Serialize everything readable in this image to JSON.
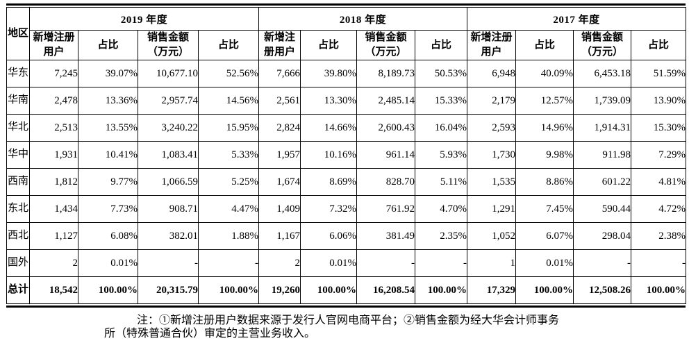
{
  "table": {
    "corner_header": "地区",
    "year_groups": [
      {
        "label": "2019 年度"
      },
      {
        "label": "2018 年度"
      },
      {
        "label": "2017 年度"
      }
    ],
    "sub_headers": [
      "新增注册用户",
      "占比",
      "销售金额（万元）",
      "占比"
    ],
    "rows": [
      {
        "region": "华东",
        "bold": false,
        "cells": [
          "7,245",
          "39.07%",
          "10,677.10",
          "52.56%",
          "7,666",
          "39.80%",
          "8,189.73",
          "50.53%",
          "6,948",
          "40.09%",
          "6,453.18",
          "51.59%"
        ]
      },
      {
        "region": "华南",
        "bold": false,
        "cells": [
          "2,478",
          "13.36%",
          "2,957.74",
          "14.56%",
          "2,561",
          "13.30%",
          "2,485.14",
          "15.33%",
          "2,179",
          "12.57%",
          "1,739.09",
          "13.90%"
        ]
      },
      {
        "region": "华北",
        "bold": false,
        "cells": [
          "2,513",
          "13.55%",
          "3,240.22",
          "15.95%",
          "2,824",
          "14.66%",
          "2,600.43",
          "16.04%",
          "2,593",
          "14.96%",
          "1,914.31",
          "15.30%"
        ]
      },
      {
        "region": "华中",
        "bold": false,
        "cells": [
          "1,931",
          "10.41%",
          "1,083.41",
          "5.33%",
          "1,957",
          "10.16%",
          "961.14",
          "5.93%",
          "1,730",
          "9.98%",
          "911.98",
          "7.29%"
        ]
      },
      {
        "region": "西南",
        "bold": false,
        "cells": [
          "1,812",
          "9.77%",
          "1,066.59",
          "5.25%",
          "1,674",
          "8.69%",
          "828.70",
          "5.11%",
          "1,535",
          "8.86%",
          "601.22",
          "4.81%"
        ]
      },
      {
        "region": "东北",
        "bold": false,
        "cells": [
          "1,434",
          "7.73%",
          "908.71",
          "4.47%",
          "1,409",
          "7.32%",
          "761.92",
          "4.70%",
          "1,291",
          "7.45%",
          "590.44",
          "4.72%"
        ]
      },
      {
        "region": "西北",
        "bold": false,
        "cells": [
          "1,127",
          "6.08%",
          "382.01",
          "1.88%",
          "1,167",
          "6.06%",
          "381.49",
          "2.35%",
          "1,052",
          "6.07%",
          "298.04",
          "2.38%"
        ]
      },
      {
        "region": "国外",
        "bold": false,
        "cells": [
          "2",
          "0.01%",
          "-",
          "-",
          "2",
          "0.01%",
          "-",
          "-",
          "1",
          "0.01%",
          "-",
          "-"
        ]
      },
      {
        "region": "总计",
        "bold": true,
        "cells": [
          "18,542",
          "100.00%",
          "20,315.79",
          "100.00%",
          "19,260",
          "100.00%",
          "16,208.54",
          "100.00%",
          "17,329",
          "100.00%",
          "12,508.26",
          "100.00%"
        ]
      }
    ]
  },
  "footnote": {
    "lines": [
      "注：①新增注册用户数据来源于发行人官网电商平台；②销售金额为经大华会计师事务",
      "所（特殊普通合伙）审定的主营业务收入。"
    ]
  }
}
